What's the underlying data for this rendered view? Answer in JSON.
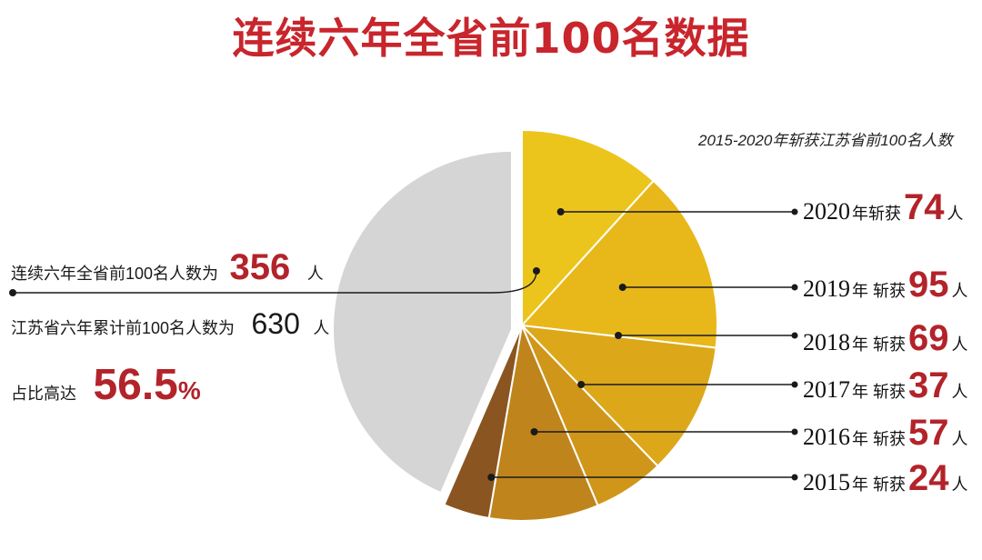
{
  "title": "连续六年全省前100名数据",
  "subtitle": "2015-2020年斩获江苏省前100名人数",
  "left_stats": {
    "line1_label": "连续六年全省前100名人数为",
    "line1_value": "356",
    "line1_unit": "人",
    "line2_label": "江苏省六年累计前100名人数为",
    "line2_value": "630",
    "line2_unit": "人",
    "line3_label": "占比高达",
    "line3_value": "56.5",
    "line3_unit": "%"
  },
  "labels": [
    {
      "year": "2020",
      "year_suffix": "年斩获",
      "value": "74",
      "unit": "人"
    },
    {
      "year": "2019",
      "year_suffix": "年 斩获",
      "value": "95",
      "unit": "人"
    },
    {
      "year": "2018",
      "year_suffix": "年 斩获",
      "value": "69",
      "unit": "人"
    },
    {
      "year": "2017",
      "year_suffix": "年 斩获",
      "value": "37",
      "unit": "人"
    },
    {
      "year": "2016",
      "year_suffix": "年 斩获",
      "value": "57",
      "unit": "人"
    },
    {
      "year": "2015",
      "year_suffix": "年 斩获",
      "value": "24",
      "unit": "人"
    }
  ],
  "chart_data": {
    "type": "pie",
    "title": "连续六年全省前100名数据",
    "subtitle": "2015-2020年斩获江苏省前100名人数",
    "total": 630,
    "slices": [
      {
        "year": "2020",
        "value": 74,
        "color": "#ecc51c"
      },
      {
        "year": "2019",
        "value": 95,
        "color": "#e8b81a"
      },
      {
        "year": "2018",
        "value": 69,
        "color": "#dca81a"
      },
      {
        "year": "2017",
        "value": 37,
        "color": "#cf961a"
      },
      {
        "year": "2016",
        "value": 57,
        "color": "#bf851c"
      },
      {
        "year": "2015",
        "value": 24,
        "color": "#8a5520"
      }
    ],
    "remainder": {
      "value": 274,
      "color": "#d5d5d5"
    }
  }
}
